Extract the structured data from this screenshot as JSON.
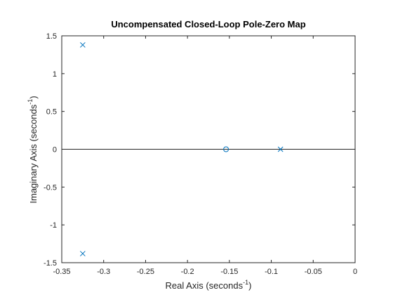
{
  "chart_data": {
    "type": "scatter",
    "title": "Uncompensated Closed-Loop Pole-Zero Map",
    "xlabel": {
      "text": "Real  Axis  (seconds",
      "sup": "-1",
      "close": ")"
    },
    "ylabel": {
      "text": "Imaginary  Axis  (seconds",
      "sup": "-1",
      "close": ")"
    },
    "xlim": [
      -0.35,
      0
    ],
    "ylim": [
      -1.5,
      1.5
    ],
    "xticks": [
      -0.35,
      -0.3,
      -0.25,
      -0.2,
      -0.15,
      -0.1,
      -0.05,
      0
    ],
    "xtick_labels": [
      "-0.35",
      "-0.3",
      "-0.25",
      "-0.2",
      "-0.15",
      "-0.1",
      "-0.05",
      "0"
    ],
    "yticks": [
      -1.5,
      -1,
      -0.5,
      0,
      0.5,
      1,
      1.5
    ],
    "ytick_labels": [
      "-1.5",
      "-1",
      "-0.5",
      "0",
      "0.5",
      "1",
      "1.5"
    ],
    "grid": false,
    "colors": {
      "marker": "#0072BD",
      "zero_line": "#262626",
      "axes": "#262626"
    },
    "poles": [
      {
        "x": -0.325,
        "y": 1.38
      },
      {
        "x": -0.325,
        "y": -1.38
      },
      {
        "x": -0.089,
        "y": 0
      }
    ],
    "zeros": [
      {
        "x": -0.154,
        "y": 0
      }
    ]
  }
}
